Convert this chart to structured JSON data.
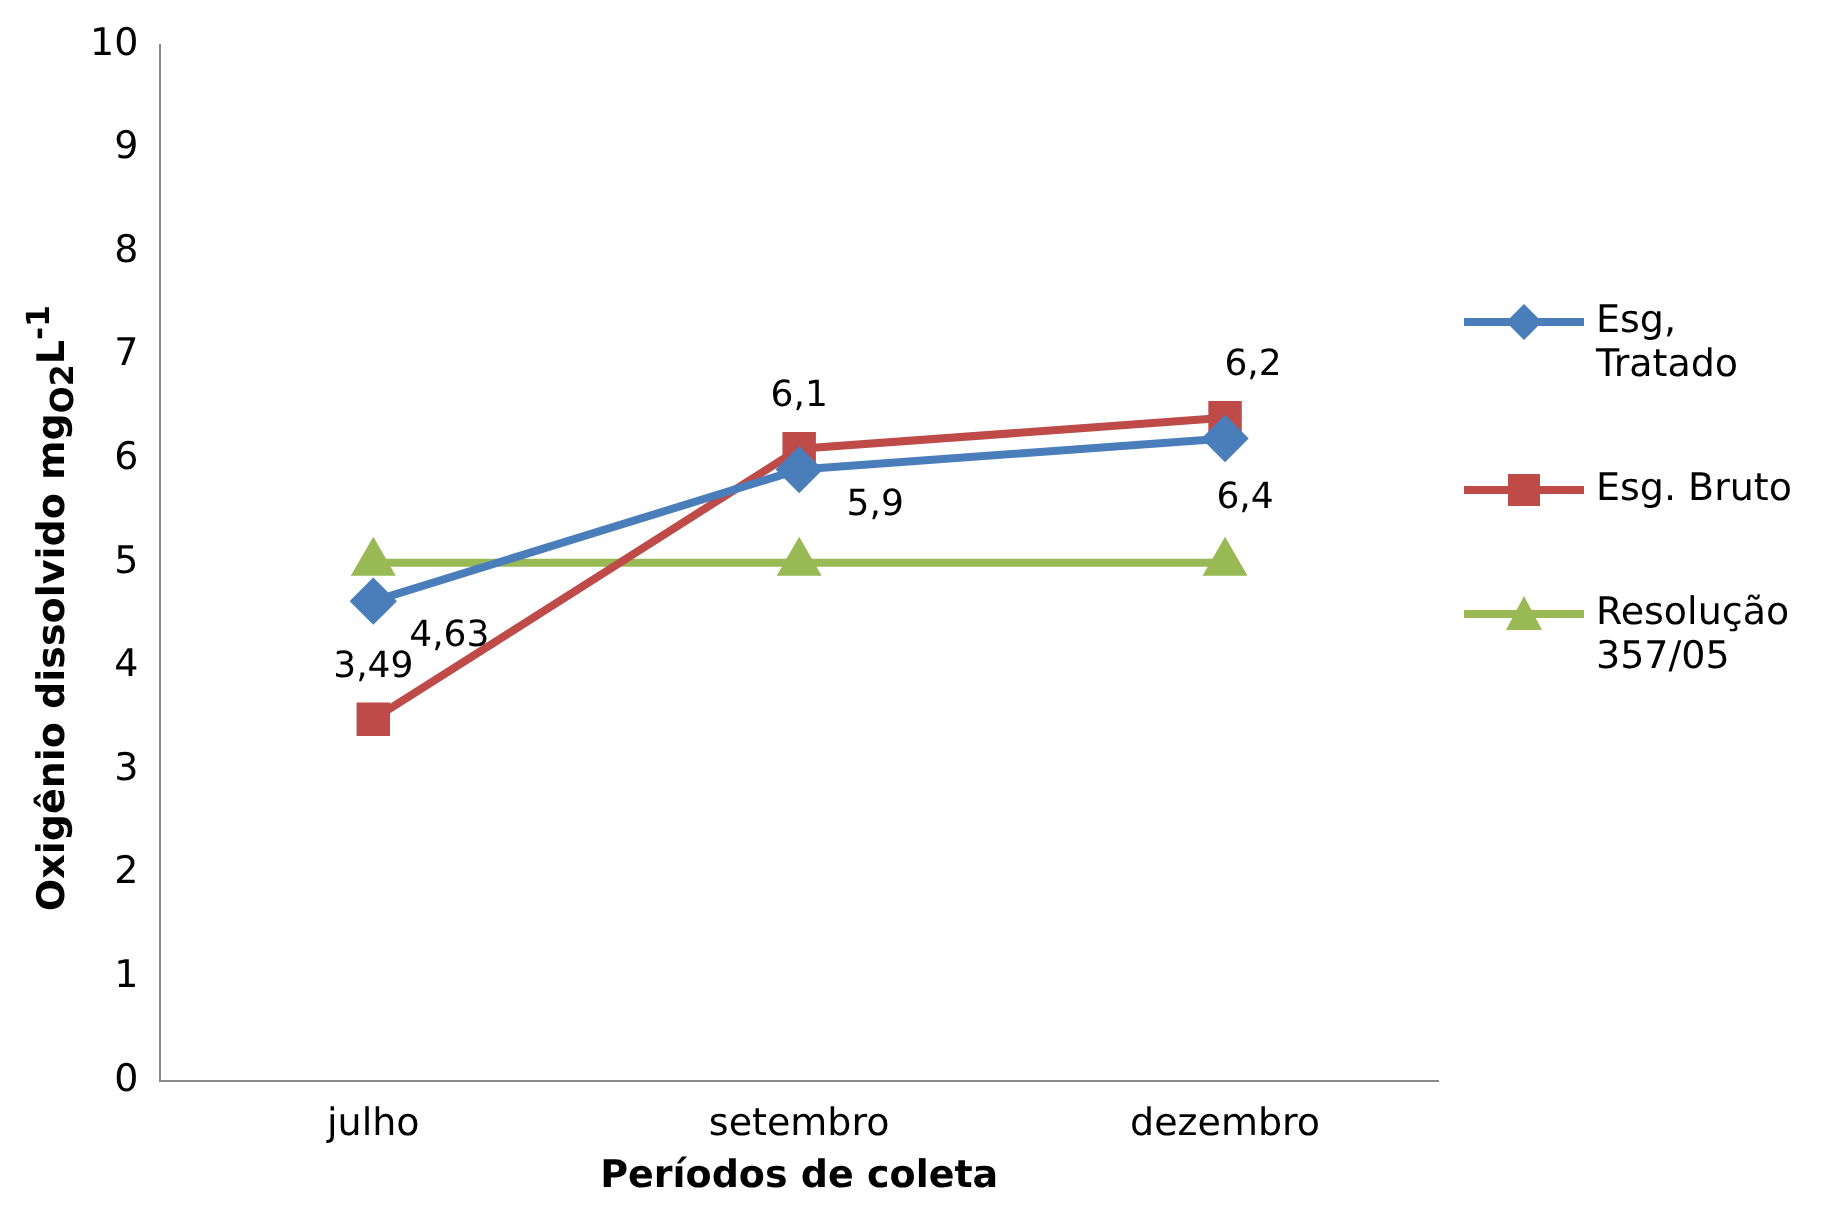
{
  "chart_data": {
    "type": "line",
    "xlabel": "Períodos de coleta",
    "ylabel": "Oxigênio dissolvido mg$_{O2}$L$^{-1}$",
    "categories": [
      "julho",
      "setembro",
      "dezembro"
    ],
    "series": [
      {
        "name": "Esg, Tratado",
        "color": "#4a7ebb",
        "marker": "diamond",
        "values": [
          4.63,
          5.9,
          6.2
        ],
        "value_labels": [
          "4,63",
          "5,9",
          null
        ]
      },
      {
        "name": "Esg. Bruto",
        "color": "#be4b48",
        "marker": "square",
        "values": [
          3.49,
          6.1,
          6.4
        ],
        "value_labels": [
          "3,49",
          "6,1",
          null
        ]
      },
      {
        "name": "Resolução 357/05",
        "color": "#98b954",
        "marker": "triangle",
        "values": [
          5,
          5,
          5
        ]
      }
    ],
    "annotations": [
      {
        "text": "6,2",
        "x": "dezembro",
        "y": 6.4
      },
      {
        "text": "6,4",
        "x": "dezembro",
        "y": 6.2
      }
    ],
    "ylim": [
      0,
      10
    ],
    "yticks": [
      0,
      1,
      2,
      3,
      4,
      5,
      6,
      7,
      8,
      9,
      10
    ],
    "grid": false,
    "legend": "right",
    "line_style": "solid"
  }
}
